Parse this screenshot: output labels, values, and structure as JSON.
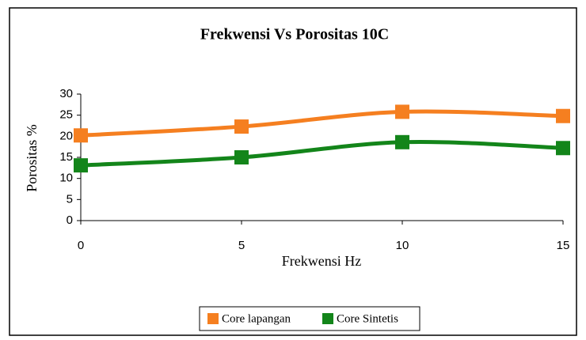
{
  "chart_data": {
    "type": "line",
    "title": "Frekwensi Vs Porositas 10C",
    "x_label": "Frekwensi Hz",
    "y_label": "Porositas %",
    "x": [
      0,
      5,
      10,
      15
    ],
    "series": [
      {
        "name": "Core lapangan",
        "color": "#f57f20",
        "values": [
          20.2,
          22.3,
          25.8,
          24.8
        ]
      },
      {
        "name": "Core Sintetis",
        "color": "#13851a",
        "values": [
          13.1,
          15.0,
          18.6,
          17.2
        ]
      }
    ],
    "xlim": [
      0,
      15
    ],
    "xticks": [
      0,
      5,
      10,
      15
    ],
    "ylim": [
      0,
      30
    ],
    "yticks": [
      0,
      5,
      10,
      15,
      20,
      25,
      30
    ],
    "smooth": true,
    "grid": false,
    "legend": "bottom"
  }
}
